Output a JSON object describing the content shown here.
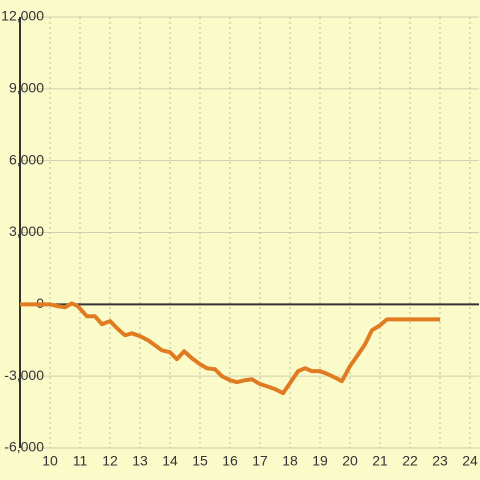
{
  "chart_data": {
    "type": "line",
    "x": [
      9,
      10,
      10.27,
      10.5,
      10.73,
      10.93,
      11.23,
      11.5,
      11.73,
      12,
      12.27,
      12.5,
      12.73,
      13,
      13.27,
      13.5,
      13.73,
      14,
      14.23,
      14.47,
      14.73,
      15,
      15.23,
      15.5,
      15.73,
      16,
      16.23,
      16.5,
      16.73,
      17,
      17.23,
      17.5,
      17.77,
      18,
      18.27,
      18.5,
      18.73,
      19,
      19.27,
      19.53,
      19.73,
      20,
      20.23,
      20.5,
      20.73,
      21,
      21.23,
      23
    ],
    "series": [
      {
        "color": "#e07b22",
        "values": [
          0,
          0,
          -80,
          -120,
          40,
          -80,
          -500,
          -500,
          -830,
          -700,
          -1040,
          -1290,
          -1210,
          -1330,
          -1500,
          -1710,
          -1920,
          -2000,
          -2290,
          -1960,
          -2250,
          -2500,
          -2670,
          -2710,
          -3000,
          -3170,
          -3250,
          -3170,
          -3130,
          -3330,
          -3420,
          -3540,
          -3710,
          -3290,
          -2790,
          -2670,
          -2790,
          -2790,
          -2920,
          -3080,
          -3210,
          -2580,
          -2170,
          -1670,
          -1080,
          -880,
          -630,
          -630
        ]
      }
    ],
    "xlim": [
      9,
      24.3
    ],
    "ylim": [
      -6000,
      12000
    ],
    "xticks": [
      10,
      11,
      12,
      13,
      14,
      15,
      16,
      17,
      18,
      19,
      20,
      21,
      22,
      23,
      24
    ],
    "yticks": [
      {
        "value": -6000,
        "label": "-6,000"
      },
      {
        "value": -3000,
        "label": "-3,000"
      },
      0,
      {
        "value": 3000,
        "label": "3,000"
      },
      {
        "value": 6000,
        "label": "6,000"
      },
      {
        "value": 9000,
        "label": "9,000"
      },
      {
        "value": 12000,
        "label": "12,000"
      }
    ],
    "grid": true
  }
}
